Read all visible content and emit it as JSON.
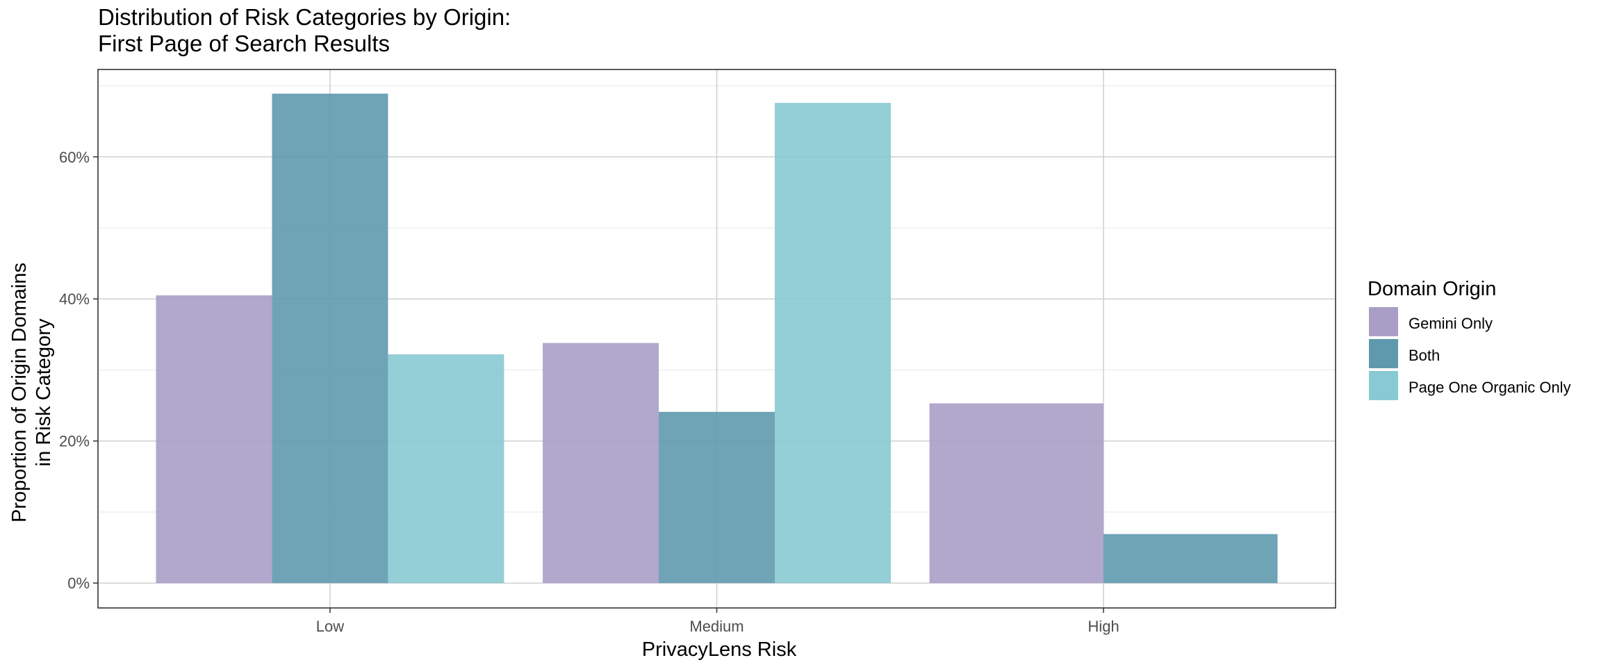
{
  "chart_data": {
    "type": "bar",
    "title_lines": [
      "Distribution of Risk Categories by Origin:",
      "First Page of Search Results"
    ],
    "xlabel": "PrivacyLens Risk",
    "ylabel_lines": [
      "Proportion of Origin Domains",
      "in Risk Category"
    ],
    "categories": [
      "Low",
      "Medium",
      "High"
    ],
    "series": [
      {
        "name": "Gemini Only",
        "color": "#a99fc6",
        "values": [
          40.5,
          33.8,
          25.3
        ]
      },
      {
        "name": "Both",
        "color": "#5f99ae",
        "values": [
          68.9,
          24.1,
          6.9
        ]
      },
      {
        "name": "Page One Organic Only",
        "color": "#88c9d3",
        "values": [
          32.2,
          67.6,
          null
        ]
      }
    ],
    "ylim": [
      -3.5,
      72.3
    ],
    "yticks": [
      0,
      20,
      40,
      60
    ],
    "ytick_labels": [
      "0%",
      "20%",
      "40%",
      "60%"
    ],
    "grid": true,
    "legend": {
      "title": "Domain Origin",
      "position": "right",
      "entries": [
        "Gemini Only",
        "Both",
        "Page One Organic Only"
      ]
    }
  }
}
